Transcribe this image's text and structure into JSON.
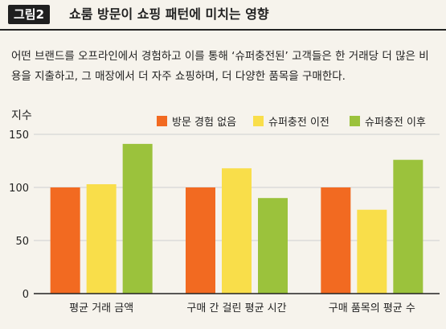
{
  "figure_label": "그림2",
  "figure_title": "쇼룸 방문이 쇼핑 패턴에 미치는 영향",
  "description": "어떤 브랜드를 오프라인에서 경험하고 이를 통해 ‘슈퍼충전된’ 고객들은 한 거래당 더 많은 비용을 지출하고, 그 매장에서 더 자주 쇼핑하며, 더 다양한 품목을 구매한다.",
  "chart_data": {
    "type": "bar",
    "ylabel": "지수",
    "ylim": [
      0,
      150
    ],
    "yticks": [
      0,
      50,
      100,
      150
    ],
    "grid": true,
    "legend_position": "top-right",
    "categories": [
      "평균 거래 금액",
      "구매 간 걸린 평균 시간",
      "구매 품목의 평균 수"
    ],
    "series": [
      {
        "name": "방문 경험 없음",
        "color": "#f26a21",
        "values": [
          100,
          100,
          100
        ]
      },
      {
        "name": "슈퍼충전 이전",
        "color": "#f9de4a",
        "values": [
          103,
          118,
          79
        ]
      },
      {
        "name": "슈퍼충전 이후",
        "color": "#9bc23c",
        "values": [
          141,
          90,
          126
        ]
      }
    ]
  }
}
